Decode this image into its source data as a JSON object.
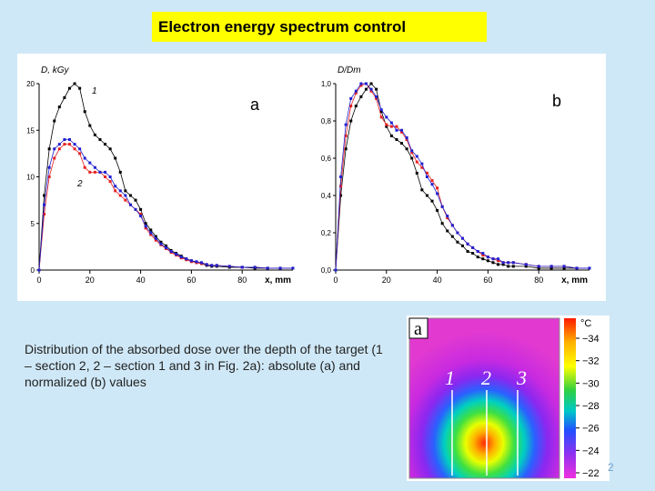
{
  "slide": {
    "title": "Electron energy spectrum control",
    "caption": "Distribution of the absorbed dose over the depth of the target (1 – section 2, 2 – section 1 and 3 in Fig. 2a): absolute (a) and normalized (b) values",
    "page_number": "2"
  },
  "colors": {
    "title_bg": "#ffff00",
    "slide_bg": "#cfe8f7",
    "black_series": "#000000",
    "red_series": "#e82020",
    "blue_series": "#2020d0"
  },
  "chart_data": [
    {
      "type": "line",
      "panel_label": "a",
      "ylabel": "D, kGy",
      "xlabel": "x, mm",
      "xlim": [
        0,
        100
      ],
      "ylim": [
        0,
        20
      ],
      "x_ticks": [
        "0",
        "20",
        "40",
        "60",
        "80"
      ],
      "y_ticks": [
        "0",
        "5",
        "10",
        "15",
        "20"
      ],
      "curve_labels": [
        "1",
        "2"
      ],
      "series": [
        {
          "name": "1",
          "color": "black",
          "x": [
            0,
            2,
            4,
            6,
            8,
            10,
            12,
            14,
            16,
            18,
            20,
            22,
            24,
            26,
            28,
            30,
            32,
            34,
            36,
            38,
            40,
            42,
            44,
            46,
            48,
            50,
            52,
            54,
            56,
            58,
            60,
            62,
            64,
            66,
            68,
            70,
            75,
            80,
            85,
            90,
            95,
            100
          ],
          "y": [
            0,
            8,
            13,
            16,
            17.5,
            18.5,
            19.5,
            20,
            19.5,
            17,
            15.5,
            14.5,
            14,
            13.5,
            13,
            12,
            10.5,
            8.5,
            8,
            7.5,
            6.5,
            5,
            4.3,
            3.6,
            3,
            2.6,
            2.1,
            1.8,
            1.5,
            1.2,
            1,
            0.8,
            0.7,
            0.5,
            0.4,
            0.4,
            0.3,
            0.3,
            0.2,
            0.2,
            0.2,
            0.2
          ]
        },
        {
          "name": "2-red",
          "color": "red",
          "x": [
            0,
            2,
            4,
            6,
            8,
            10,
            12,
            14,
            16,
            18,
            20,
            22,
            24,
            26,
            28,
            30,
            32,
            34,
            36,
            38,
            40,
            42,
            44,
            46,
            48,
            50,
            52,
            54,
            56,
            58,
            60,
            62,
            64,
            66,
            68,
            70,
            75,
            80,
            85,
            90,
            95,
            100
          ],
          "y": [
            0,
            6,
            10,
            12,
            13,
            13.5,
            13.5,
            13,
            12.5,
            11,
            10.5,
            10.5,
            10.5,
            10,
            9.5,
            8.5,
            8,
            7.5,
            7,
            6.5,
            6,
            4.5,
            3.8,
            3.2,
            2.7,
            2.3,
            1.9,
            1.6,
            1.3,
            1.1,
            0.9,
            0.8,
            0.7,
            0.6,
            0.5,
            0.5,
            0.4,
            0.3,
            0.3,
            0.2,
            0.2,
            0.2
          ]
        },
        {
          "name": "2-blue",
          "color": "blue",
          "x": [
            0,
            2,
            4,
            6,
            8,
            10,
            12,
            14,
            16,
            18,
            20,
            22,
            24,
            26,
            28,
            30,
            32,
            34,
            36,
            38,
            40,
            42,
            44,
            46,
            48,
            50,
            52,
            54,
            56,
            58,
            60,
            62,
            64,
            66,
            68,
            70,
            75,
            80,
            85,
            90,
            95,
            100
          ],
          "y": [
            0,
            7,
            11,
            13,
            13.5,
            14,
            14,
            13.5,
            13,
            12,
            11.5,
            11,
            10.5,
            10.5,
            10,
            9,
            8.5,
            8,
            7,
            6.5,
            5.8,
            4.7,
            4,
            3.4,
            2.8,
            2.4,
            2,
            1.7,
            1.4,
            1.2,
            1,
            0.9,
            0.8,
            0.6,
            0.5,
            0.5,
            0.4,
            0.3,
            0.3,
            0.2,
            0.2,
            0.2
          ]
        }
      ]
    },
    {
      "type": "line",
      "panel_label": "b",
      "ylabel": "D/Dm",
      "xlabel": "x, mm",
      "xlim": [
        0,
        100
      ],
      "ylim": [
        0,
        1.0
      ],
      "x_ticks": [
        "0",
        "20",
        "40",
        "60",
        "80"
      ],
      "y_ticks": [
        "0,0",
        "0,2",
        "0,4",
        "0,6",
        "0,8",
        "1,0"
      ],
      "series": [
        {
          "name": "1",
          "color": "black",
          "x": [
            0,
            2,
            4,
            6,
            8,
            10,
            12,
            14,
            16,
            18,
            20,
            22,
            24,
            26,
            28,
            30,
            32,
            34,
            36,
            38,
            40,
            42,
            44,
            46,
            48,
            50,
            52,
            54,
            56,
            58,
            60,
            62,
            64,
            66,
            68,
            70,
            75,
            80,
            85,
            90,
            95,
            100
          ],
          "y": [
            0,
            0.4,
            0.65,
            0.8,
            0.88,
            0.93,
            0.97,
            1.0,
            0.97,
            0.85,
            0.77,
            0.72,
            0.7,
            0.68,
            0.65,
            0.6,
            0.52,
            0.43,
            0.4,
            0.37,
            0.32,
            0.25,
            0.21,
            0.18,
            0.15,
            0.13,
            0.1,
            0.09,
            0.07,
            0.06,
            0.05,
            0.04,
            0.03,
            0.03,
            0.02,
            0.02,
            0.02,
            0.01,
            0.01,
            0.01,
            0.01,
            0.01
          ]
        },
        {
          "name": "red",
          "color": "red",
          "x": [
            0,
            2,
            4,
            6,
            8,
            10,
            12,
            14,
            16,
            18,
            20,
            22,
            24,
            26,
            28,
            30,
            32,
            34,
            36,
            38,
            40,
            42,
            44,
            46,
            48,
            50,
            52,
            54,
            56,
            58,
            60,
            62,
            64,
            66,
            68,
            70,
            75,
            80,
            85,
            90,
            95,
            100
          ],
          "y": [
            0,
            0.45,
            0.72,
            0.88,
            0.95,
            0.99,
            1.0,
            0.96,
            0.92,
            0.82,
            0.78,
            0.77,
            0.77,
            0.74,
            0.7,
            0.63,
            0.58,
            0.55,
            0.52,
            0.48,
            0.44,
            0.34,
            0.28,
            0.24,
            0.2,
            0.17,
            0.14,
            0.12,
            0.1,
            0.08,
            0.07,
            0.06,
            0.05,
            0.04,
            0.04,
            0.04,
            0.03,
            0.02,
            0.02,
            0.02,
            0.01,
            0.01
          ]
        },
        {
          "name": "blue",
          "color": "blue",
          "x": [
            0,
            2,
            4,
            6,
            8,
            10,
            12,
            14,
            16,
            18,
            20,
            22,
            24,
            26,
            28,
            30,
            32,
            34,
            36,
            38,
            40,
            42,
            44,
            46,
            48,
            50,
            52,
            54,
            56,
            58,
            60,
            62,
            64,
            66,
            68,
            70,
            75,
            80,
            85,
            90,
            95,
            100
          ],
          "y": [
            0,
            0.5,
            0.78,
            0.92,
            0.96,
            1.0,
            1.0,
            0.97,
            0.93,
            0.86,
            0.82,
            0.79,
            0.75,
            0.75,
            0.71,
            0.64,
            0.61,
            0.57,
            0.5,
            0.46,
            0.41,
            0.34,
            0.29,
            0.24,
            0.2,
            0.17,
            0.14,
            0.12,
            0.1,
            0.09,
            0.07,
            0.06,
            0.06,
            0.04,
            0.04,
            0.04,
            0.03,
            0.02,
            0.02,
            0.02,
            0.01,
            0.01
          ]
        }
      ]
    }
  ],
  "thermal": {
    "panel_label": "a",
    "section_labels": [
      "1",
      "2",
      "3"
    ],
    "unit": "°C",
    "scale_ticks": [
      "34",
      "32",
      "30",
      "28",
      "26",
      "24",
      "22"
    ]
  }
}
